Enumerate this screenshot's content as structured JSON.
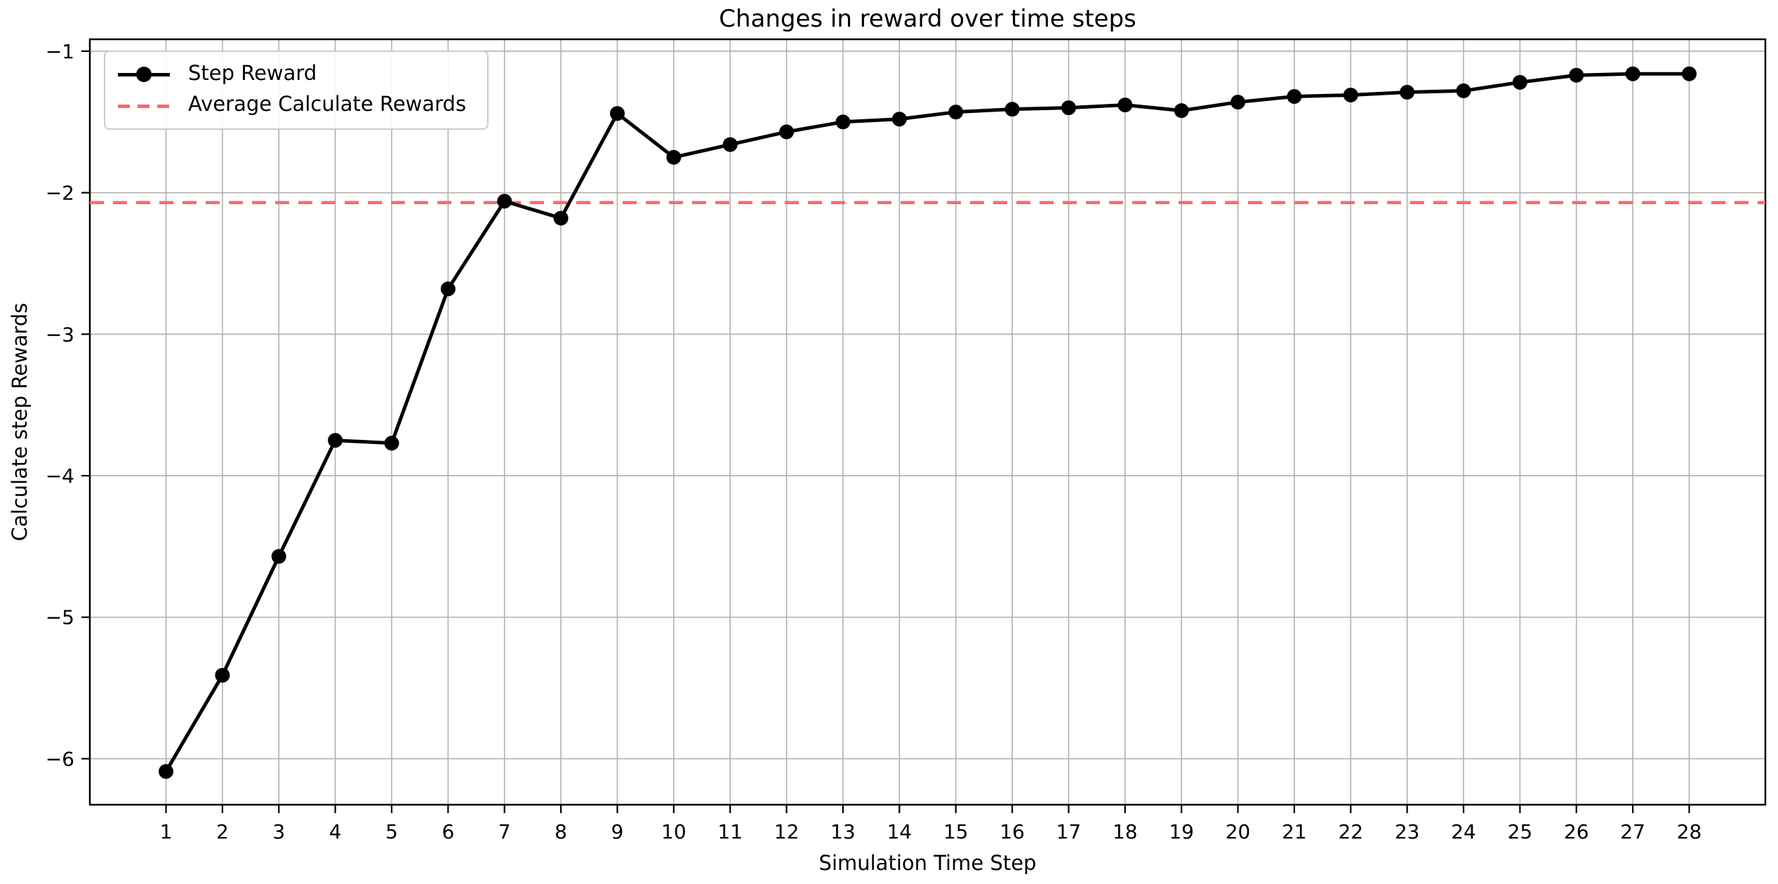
{
  "title": "Changes in reward over time steps",
  "chart_data": {
    "type": "line",
    "title": "Changes in reward over time steps",
    "xlabel": "Simulation Time Step",
    "ylabel": "Calculate step Rewards",
    "x": [
      1,
      2,
      3,
      4,
      5,
      6,
      7,
      8,
      9,
      10,
      11,
      12,
      13,
      14,
      15,
      16,
      17,
      18,
      19,
      20,
      21,
      22,
      23,
      24,
      25,
      26,
      27,
      28
    ],
    "series": [
      {
        "name": "Step Reward",
        "type": "line-with-markers",
        "color": "#000000",
        "values": [
          -6.09,
          -5.41,
          -4.57,
          -3.75,
          -3.77,
          -2.68,
          -2.06,
          -2.18,
          -1.44,
          -1.75,
          -1.66,
          -1.57,
          -1.5,
          -1.48,
          -1.43,
          -1.41,
          -1.4,
          -1.38,
          -1.42,
          -1.36,
          -1.32,
          -1.31,
          -1.29,
          -1.28,
          -1.22,
          -1.17,
          -1.16,
          -1.16
        ]
      },
      {
        "name": "Average Calculate Rewards",
        "type": "horizontal-dashed-line",
        "color": "#fa6a6a",
        "value": -2.07
      }
    ],
    "xticks": [
      1,
      2,
      3,
      4,
      5,
      6,
      7,
      8,
      9,
      10,
      11,
      12,
      13,
      14,
      15,
      16,
      17,
      18,
      19,
      20,
      21,
      22,
      23,
      24,
      25,
      26,
      27,
      28
    ],
    "yticks": [
      -1,
      -2,
      -3,
      -4,
      -5,
      -6
    ],
    "xlim": [
      -0.35,
      29.35
    ],
    "ylim": [
      -6.325,
      -0.916
    ],
    "grid": true,
    "legend_position": "upper left"
  },
  "legend": {
    "items": [
      {
        "label": "Step Reward"
      },
      {
        "label": "Average Calculate Rewards"
      }
    ]
  },
  "colors": {
    "step_line": "#000000",
    "average_line": "#fa6a6a",
    "grid": "#b0b0b0",
    "spine": "#000000",
    "background": "#ffffff"
  }
}
